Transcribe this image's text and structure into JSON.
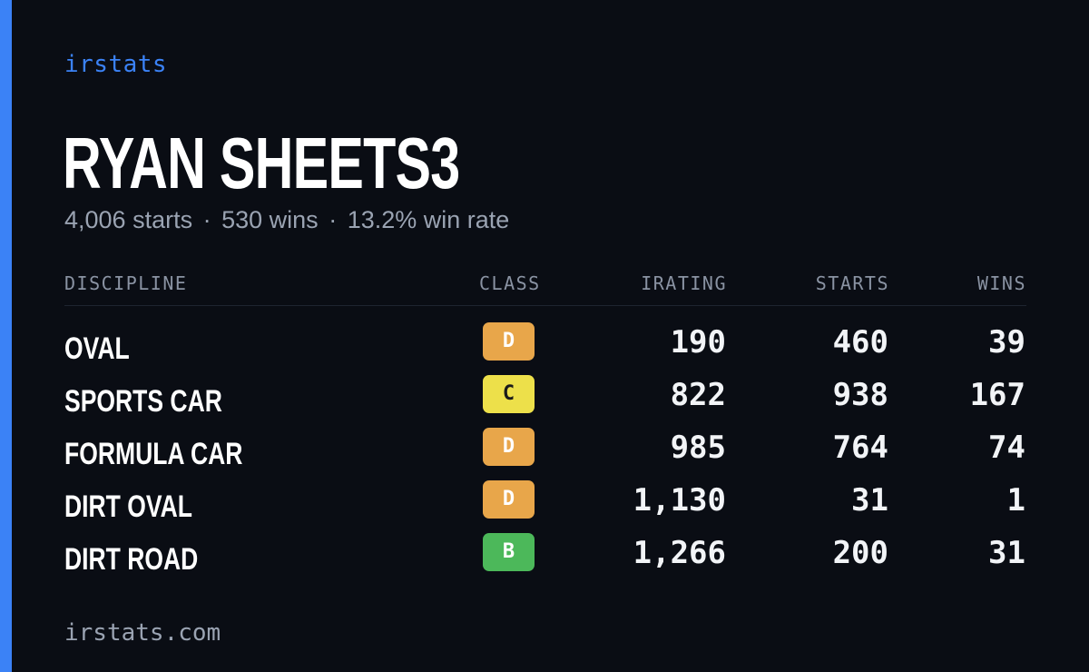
{
  "brand": "irstats",
  "driver": {
    "name": "RYAN SHEETS3"
  },
  "summary": {
    "starts": "4,006 starts",
    "wins": "530 wins",
    "win_rate": "13.2% win rate",
    "separator": "·"
  },
  "table": {
    "headers": {
      "discipline": "DISCIPLINE",
      "class": "CLASS",
      "irating": "IRATING",
      "starts": "STARTS",
      "wins": "WINS"
    },
    "rows": [
      {
        "discipline": "OVAL",
        "class": "D",
        "class_color": "#e8a64a",
        "class_text": "#ffffff",
        "irating": "190",
        "starts": "460",
        "wins": "39"
      },
      {
        "discipline": "SPORTS CAR",
        "class": "C",
        "class_color": "#ede04a",
        "class_text": "#1a1a1a",
        "irating": "822",
        "starts": "938",
        "wins": "167"
      },
      {
        "discipline": "FORMULA CAR",
        "class": "D",
        "class_color": "#e8a64a",
        "class_text": "#ffffff",
        "irating": "985",
        "starts": "764",
        "wins": "74"
      },
      {
        "discipline": "DIRT OVAL",
        "class": "D",
        "class_color": "#e8a64a",
        "class_text": "#ffffff",
        "irating": "1,130",
        "starts": "31",
        "wins": "1"
      },
      {
        "discipline": "DIRT ROAD",
        "class": "B",
        "class_color": "#4cb85a",
        "class_text": "#ffffff",
        "irating": "1,266",
        "starts": "200",
        "wins": "31"
      }
    ]
  },
  "footer": "irstats.com",
  "colors": {
    "accent": "#3b82f6",
    "background": "#0a0d14"
  }
}
